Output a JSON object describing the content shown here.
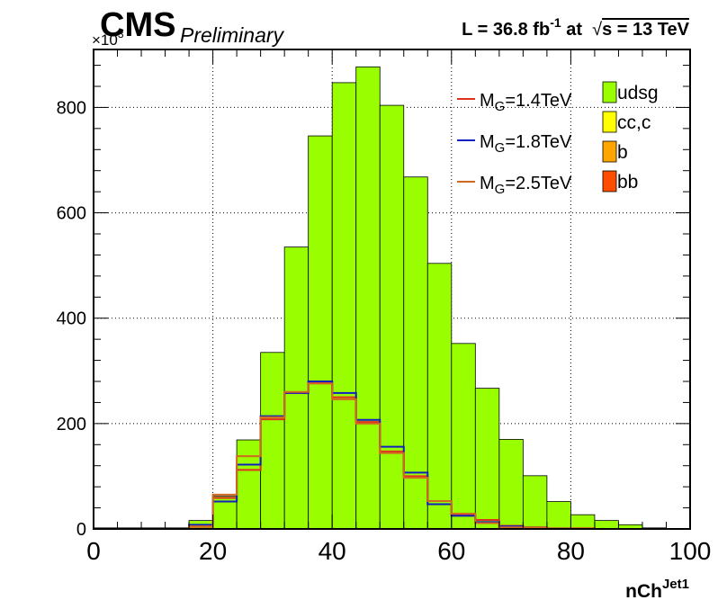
{
  "header": {
    "experiment": "CMS",
    "status": "Preliminary",
    "lumi_prefix": "L = 36.8 fb",
    "lumi_exp": "-1",
    "lumi_mid": " at  ",
    "sqrt_symbol": "√",
    "energy": "s = 13 TeV"
  },
  "chart_data": {
    "type": "bar",
    "stacked": true,
    "xlabel_main": "nCh",
    "xlabel_sup": "Jet1",
    "ylabel": "",
    "y_multiplier": "×10",
    "y_multiplier_exp": "3",
    "xlim": [
      0,
      100
    ],
    "ylim": [
      0,
      910
    ],
    "x_ticks": [
      0,
      20,
      40,
      60,
      80,
      100
    ],
    "y_ticks": [
      0,
      200,
      400,
      600,
      800
    ],
    "grid": true,
    "bin_edges": [
      0,
      4,
      8,
      12,
      16,
      20,
      24,
      28,
      32,
      36,
      40,
      44,
      48,
      52,
      56,
      60,
      64,
      68,
      72,
      76,
      80,
      84,
      88,
      92,
      96,
      100
    ],
    "stack": [
      {
        "name": "bb",
        "color": "#ff4d00",
        "values": [
          0,
          0,
          0,
          0,
          0,
          4,
          8,
          17,
          25,
          34,
          40,
          38,
          33,
          25,
          17,
          12,
          7,
          5,
          3,
          2,
          1,
          1,
          0,
          0,
          0
        ]
      },
      {
        "name": "b",
        "color": "#ffa500",
        "values": [
          0,
          0,
          0,
          0,
          2,
          10,
          22,
          38,
          60,
          82,
          77,
          82,
          76,
          60,
          43,
          28,
          18,
          11,
          6,
          4,
          2,
          1,
          0,
          0,
          0
        ]
      },
      {
        "name": "cc,c",
        "color": "#ffff00",
        "values": [
          0,
          0,
          0,
          0,
          4,
          18,
          45,
          85,
          140,
          190,
          218,
          252,
          245,
          215,
          162,
          102,
          72,
          42,
          22,
          11,
          5,
          2,
          1,
          0,
          0
        ]
      },
      {
        "name": "udsg",
        "color": "#99ff00",
        "values": [
          2,
          2,
          2,
          2,
          10,
          30,
          94,
          195,
          310,
          440,
          512,
          505,
          450,
          368,
          282,
          210,
          170,
          112,
          70,
          35,
          19,
          12,
          7,
          2,
          1
        ]
      }
    ],
    "overlays": [
      {
        "name_main": "M",
        "name_sub": "G",
        "name_rest": "=1.4TeV",
        "color": "#e03020",
        "values": [
          0,
          0,
          0,
          0,
          4,
          59,
          112,
          208,
          258,
          278,
          250,
          203,
          147,
          100,
          47,
          27,
          17,
          6,
          3,
          1,
          1,
          0,
          0,
          0,
          0
        ]
      },
      {
        "name_main": "M",
        "name_sub": "G",
        "name_rest": "=1.8TeV",
        "color": "#1020c0",
        "values": [
          0,
          0,
          0,
          0,
          8,
          52,
          122,
          214,
          258,
          280,
          258,
          207,
          156,
          107,
          47,
          25,
          13,
          5,
          2,
          1,
          0,
          0,
          0,
          0,
          0
        ]
      },
      {
        "name_main": "M",
        "name_sub": "G",
        "name_rest": "=2.5TeV",
        "color": "#d2691e",
        "values": [
          0,
          0,
          0,
          0,
          5,
          65,
          138,
          212,
          260,
          276,
          246,
          200,
          144,
          97,
          53,
          29,
          11,
          3,
          2,
          1,
          0,
          0,
          0,
          0,
          0
        ]
      }
    ]
  }
}
